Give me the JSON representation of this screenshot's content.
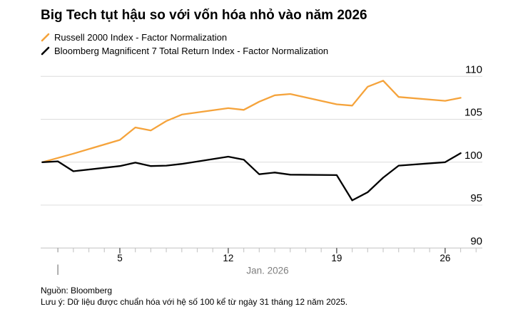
{
  "title": "Big Tech tụt hậu so với vốn hóa nhỏ vào năm 2026",
  "legend": [
    {
      "marker": "slash-icon",
      "color": "#F5A33B",
      "label": "Russell 2000 Index - Factor Normalization"
    },
    {
      "marker": "slash-icon",
      "color": "#000000",
      "label": "Bloomberg Magnificent 7 Total Return Index - Factor Normalization"
    }
  ],
  "footer": {
    "source": "Nguồn: Bloomberg",
    "note": "Lưu ý: Dữ liệu được chuẩn hóa với hệ số 100 kể từ ngày 31 tháng 12 năm 2025."
  },
  "colors": {
    "russell_line": "#F5A33B",
    "mag7_line": "#000000",
    "gridline": "#dcdcdc",
    "axis_line": "#c2c2c2",
    "minor_tick": "#c8c8c8",
    "major_tick": "#3a3a3a",
    "muted_label": "#7f7f7f",
    "year_marker": "#9c9c9c"
  },
  "chart_data": {
    "type": "line",
    "title": "Big Tech tụt hậu so với vốn hóa nhỏ vào năm 2026",
    "x_unit": "day of January 2026 (0 = Dec 31, 2025)",
    "x_axis": {
      "label": "Jan. 2026",
      "major_tick_days": [
        5,
        12,
        19,
        26
      ],
      "minor_tick_interval_days": 1,
      "range_days": [
        0,
        28.4
      ],
      "year_start_marker_day": 1
    },
    "y_axis": {
      "side": "right",
      "ticks": [
        90,
        95,
        100,
        105,
        110
      ],
      "ylim": [
        90,
        110
      ]
    },
    "grid": true,
    "legend_position": "top-left",
    "series": [
      {
        "name": "Russell 2000 Index - Factor Normalization",
        "color": "#F5A33B",
        "points": [
          [
            0,
            100.0
          ],
          [
            2,
            101.0
          ],
          [
            5,
            102.6
          ],
          [
            6,
            104.05
          ],
          [
            7,
            103.7
          ],
          [
            8,
            104.8
          ],
          [
            9,
            105.55
          ],
          [
            12,
            106.3
          ],
          [
            13,
            106.1
          ],
          [
            14,
            107.05
          ],
          [
            15,
            107.8
          ],
          [
            16,
            107.95
          ],
          [
            19,
            106.75
          ],
          [
            20,
            106.6
          ],
          [
            21,
            108.8
          ],
          [
            22,
            109.5
          ],
          [
            23,
            107.6
          ],
          [
            26,
            107.15
          ],
          [
            27,
            107.5
          ]
        ]
      },
      {
        "name": "Bloomberg Magnificent 7 Total Return Index - Factor Normalization",
        "color": "#000000",
        "points": [
          [
            0,
            100.0
          ],
          [
            1,
            100.1
          ],
          [
            2,
            98.95
          ],
          [
            5,
            99.55
          ],
          [
            6,
            99.95
          ],
          [
            7,
            99.55
          ],
          [
            8,
            99.6
          ],
          [
            9,
            99.8
          ],
          [
            12,
            100.65
          ],
          [
            13,
            100.3
          ],
          [
            14,
            98.6
          ],
          [
            15,
            98.8
          ],
          [
            16,
            98.55
          ],
          [
            19,
            98.5
          ],
          [
            20,
            95.55
          ],
          [
            21,
            96.5
          ],
          [
            22,
            98.2
          ],
          [
            23,
            99.6
          ],
          [
            26,
            100.0
          ],
          [
            27,
            101.05
          ]
        ]
      }
    ]
  }
}
